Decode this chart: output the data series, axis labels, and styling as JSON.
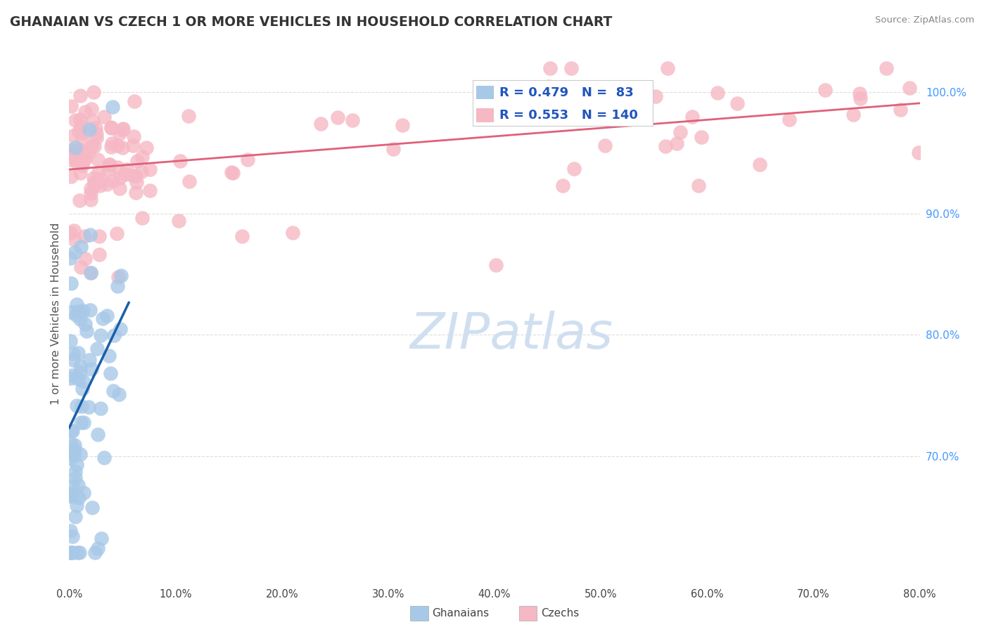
{
  "title": "GHANAIAN VS CZECH 1 OR MORE VEHICLES IN HOUSEHOLD CORRELATION CHART",
  "source": "Source: ZipAtlas.com",
  "ylabel": "1 or more Vehicles in Household",
  "xlim": [
    0.0,
    0.8
  ],
  "ylim": [
    0.595,
    1.04
  ],
  "yticks_right": [
    0.7,
    0.8,
    0.9,
    1.0
  ],
  "ytick_labels_right": [
    "70.0%",
    "80.0%",
    "90.0%",
    "100.0%"
  ],
  "xticks": [
    0.0,
    0.1,
    0.2,
    0.3,
    0.4,
    0.5,
    0.6,
    0.7,
    0.8
  ],
  "xtick_labels": [
    "0.0%",
    "10.0%",
    "20.0%",
    "30.0%",
    "40.0%",
    "50.0%",
    "60.0%",
    "70.0%",
    "80.0%"
  ],
  "legend_r1": "R = 0.479",
  "legend_n1": "N =  83",
  "legend_r2": "R = 0.553",
  "legend_n2": "N = 140",
  "legend_label1": "Ghanaians",
  "legend_label2": "Czechs",
  "color_blue": "#a8c8e8",
  "color_pink": "#f5b8c4",
  "color_trendline_blue": "#1a5fa8",
  "color_trendline_pink": "#e0607a",
  "watermark_color": "#d0dff0",
  "grid_color": "#dddddd",
  "right_axis_color": "#4499ff",
  "title_color": "#333333",
  "source_color": "#888888",
  "ylabel_color": "#555555"
}
